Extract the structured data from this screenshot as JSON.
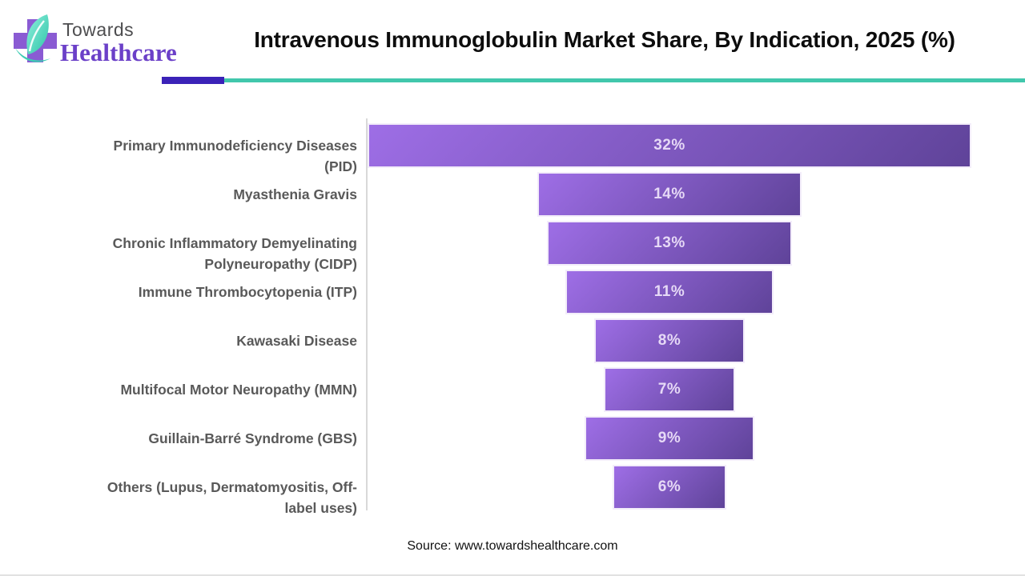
{
  "brand": {
    "name_line1": "Towards",
    "name_line2": "Healthcare",
    "colors": {
      "towards_text": "#4D4D4F",
      "healthcare_text": "#6B40C8",
      "cross": "#8A5BD3",
      "leaf_light": "#8FF0DC",
      "leaf_dark": "#2EC4A8"
    }
  },
  "header": {
    "title": "Intravenous Immunoglobulin Market Share, By Indication, 2025 (%)",
    "divider_purple_color": "#3B22B8",
    "divider_teal_color": "#41C7AC"
  },
  "chart_data": {
    "type": "bar",
    "subtype": "horizontal-centered-funnel",
    "title": "Intravenous Immunoglobulin Market Share, By Indication, 2025 (%)",
    "unit": "%",
    "categories": [
      "Primary Immunodeficiency Diseases (PID)",
      "Myasthenia Gravis",
      "Chronic Inflammatory Demyelinating Polyneuropathy (CIDP)",
      "Immune Thrombocytopenia (ITP)",
      "Kawasaki Disease",
      "Multifocal Motor Neuropathy (MMN)",
      "Guillain-Barré Syndrome (GBS)",
      "Others (Lupus, Dermatomyositis, Off-label uses)"
    ],
    "categories_lines": [
      [
        "Primary Immunodeficiency Diseases",
        "(PID)"
      ],
      [
        "Myasthenia Gravis"
      ],
      [
        "Chronic Inflammatory Demyelinating",
        "Polyneuropathy (CIDP)"
      ],
      [
        "Immune Thrombocytopenia (ITP)"
      ],
      [
        "Kawasaki Disease"
      ],
      [
        "Multifocal Motor Neuropathy (MMN)"
      ],
      [
        "Guillain-Barré Syndrome (GBS)"
      ],
      [
        "Others (Lupus, Dermatomyositis, Off-",
        "label uses)"
      ]
    ],
    "values": [
      32,
      14,
      13,
      11,
      8,
      7,
      9,
      6
    ],
    "value_labels": [
      "32%",
      "14%",
      "13%",
      "11%",
      "8%",
      "7%",
      "9%",
      "6%"
    ],
    "xlim": [
      0,
      32
    ],
    "grid": false,
    "legend": "none",
    "bar_gradient": [
      "#9E6EE6",
      "#5F4399"
    ],
    "bar_border_color": "#F3EDFA",
    "value_label_color": "#E6D9F6",
    "category_label_color": "#595959",
    "axis_line_color": "#D9D9D9"
  },
  "footer": {
    "source": "Source: www.towardshealthcare.com"
  }
}
